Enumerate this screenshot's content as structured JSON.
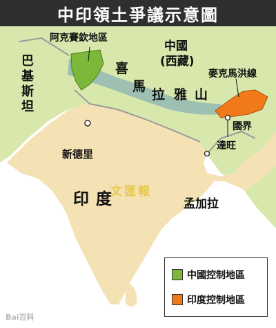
{
  "title": "中印領土爭議示意圖",
  "regions": {
    "aksai_chin": "阿克賽欽地區",
    "china": "中國",
    "tibet": "(西藏)",
    "pakistan": "巴基斯坦",
    "himalaya": [
      "喜",
      "馬",
      "拉",
      "雅",
      "山"
    ],
    "mcmahon_line": "麥克馬洪線",
    "border": "國界",
    "tawang": "達旺",
    "new_delhi": "新德里",
    "india": "印度",
    "bangladesh": "孟加拉"
  },
  "watermark": "文匯報",
  "legend": {
    "items": [
      {
        "label": "中國控制地區",
        "color": "#7db83a"
      },
      {
        "label": "印度控制地區",
        "color": "#f07a1a"
      }
    ]
  },
  "source": "Bai百科",
  "colors": {
    "land_india": "#f4e1b4",
    "land_other": "#d8e8ad",
    "sea": "#ffffff",
    "border_line": "#9a9a9a"
  }
}
